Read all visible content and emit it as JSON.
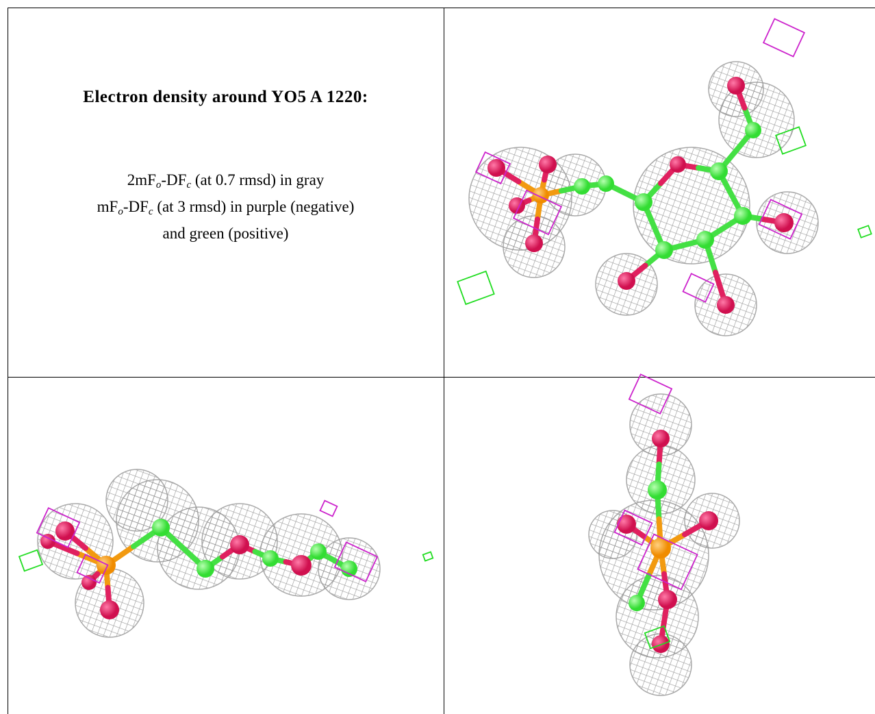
{
  "title": "Electron density around YO5 A 1220:",
  "legend_lines": [
    [
      {
        "text": "2mF"
      },
      {
        "sub": "o"
      },
      {
        "text": "-DF"
      },
      {
        "sub": "c"
      },
      {
        "text": " (at 0.7 rmsd) in gray"
      }
    ],
    [
      {
        "text": "mF"
      },
      {
        "sub": "o"
      },
      {
        "text": "-DF"
      },
      {
        "sub": "c"
      },
      {
        "text": " (at 3 rmsd) in purple (negative)"
      }
    ],
    [
      {
        "text": "and green (positive)"
      }
    ]
  ]
}
